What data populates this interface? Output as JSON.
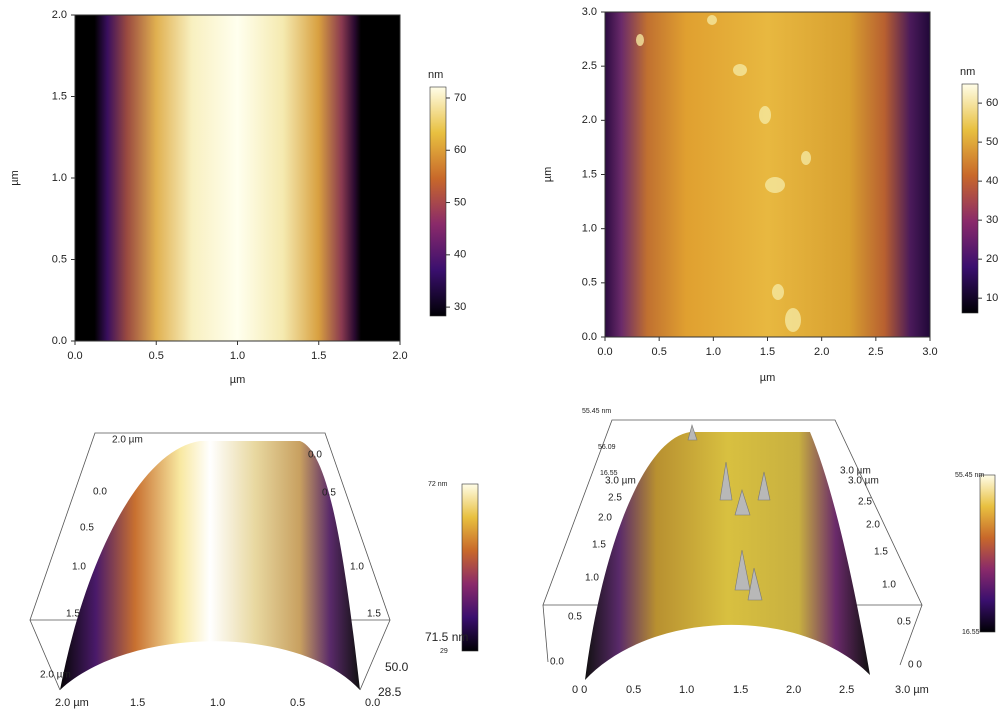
{
  "chart_data": [
    {
      "type": "heatmap",
      "x_label": "µm",
      "y_label": "µm",
      "xlim": [
        0,
        2
      ],
      "ylim": [
        0,
        2
      ],
      "xticks": [
        {
          "value": 0,
          "label": "0.0"
        },
        {
          "value": 0.5,
          "label": "0.5"
        },
        {
          "value": 1,
          "label": "1.0"
        },
        {
          "value": 1.5,
          "label": "1.5"
        },
        {
          "value": 2,
          "label": "2.0"
        }
      ],
      "yticks": [
        {
          "value": 0,
          "label": "0.0"
        },
        {
          "value": 0.5,
          "label": "0.5"
        },
        {
          "value": 1,
          "label": "1.0"
        },
        {
          "value": 1.5,
          "label": "1.5"
        },
        {
          "value": 2,
          "label": "2.0"
        }
      ],
      "colorbar": {
        "label": "nm",
        "lim": [
          28.3,
          72.1
        ],
        "ticks": [
          30,
          40,
          50,
          60,
          70
        ]
      }
    },
    {
      "type": "heatmap",
      "x_label": "µm",
      "y_label": "µm",
      "xlim": [
        0,
        3
      ],
      "ylim": [
        0,
        3
      ],
      "xticks": [
        {
          "value": 0,
          "label": "0.0"
        },
        {
          "value": 0.5,
          "label": "0.5"
        },
        {
          "value": 1,
          "label": "1.0"
        },
        {
          "value": 1.5,
          "label": "1.5"
        },
        {
          "value": 2,
          "label": "2.0"
        },
        {
          "value": 2.5,
          "label": "2.5"
        },
        {
          "value": 3,
          "label": "3.0"
        }
      ],
      "yticks": [
        {
          "value": 0,
          "label": "0.0"
        },
        {
          "value": 0.5,
          "label": "0.5"
        },
        {
          "value": 1,
          "label": "1.0"
        },
        {
          "value": 1.5,
          "label": "1.5"
        },
        {
          "value": 2,
          "label": "2.0"
        },
        {
          "value": 2.5,
          "label": "2.5"
        },
        {
          "value": 3,
          "label": "3.0"
        }
      ],
      "colorbar": {
        "label": "nm",
        "lim": [
          6.2,
          64.9
        ],
        "ticks": [
          10,
          20,
          30,
          40,
          50,
          60
        ]
      }
    },
    {
      "type": "surface",
      "colorbar_labels": [
        "72 nm",
        "29"
      ],
      "z_labels": [
        "71.5 nm",
        "50.0",
        "28.5"
      ],
      "left_labels": [
        "2.0 µm",
        "0.0",
        "0.5",
        "1.0",
        "1.5",
        "2.0 µm"
      ],
      "right_labels": [
        "0.0",
        "0.5",
        "1.0",
        "1.5"
      ],
      "bottom_labels": [
        "2.0 µm",
        "1.5",
        "1.0",
        "0.5",
        "0.0"
      ]
    },
    {
      "type": "surface",
      "colorbar_labels": [
        "55.45 nm",
        "16.55"
      ],
      "z_labels": [
        "55.45 nm",
        "56.09",
        "16.55"
      ],
      "left_labels": [
        "3.0 µm",
        "2.5",
        "2.0",
        "1.5",
        "1.0",
        "0.5",
        "0.0"
      ],
      "right_labels": [
        "3.0 µm",
        "3.0 µm",
        "2.5",
        "2.0",
        "1.5",
        "1.0",
        "0.5",
        "0 0"
      ],
      "bottom_labels": [
        "0 0",
        "0.5",
        "1.0",
        "1.5",
        "2.0",
        "2.5",
        "3.0 µm"
      ]
    }
  ]
}
